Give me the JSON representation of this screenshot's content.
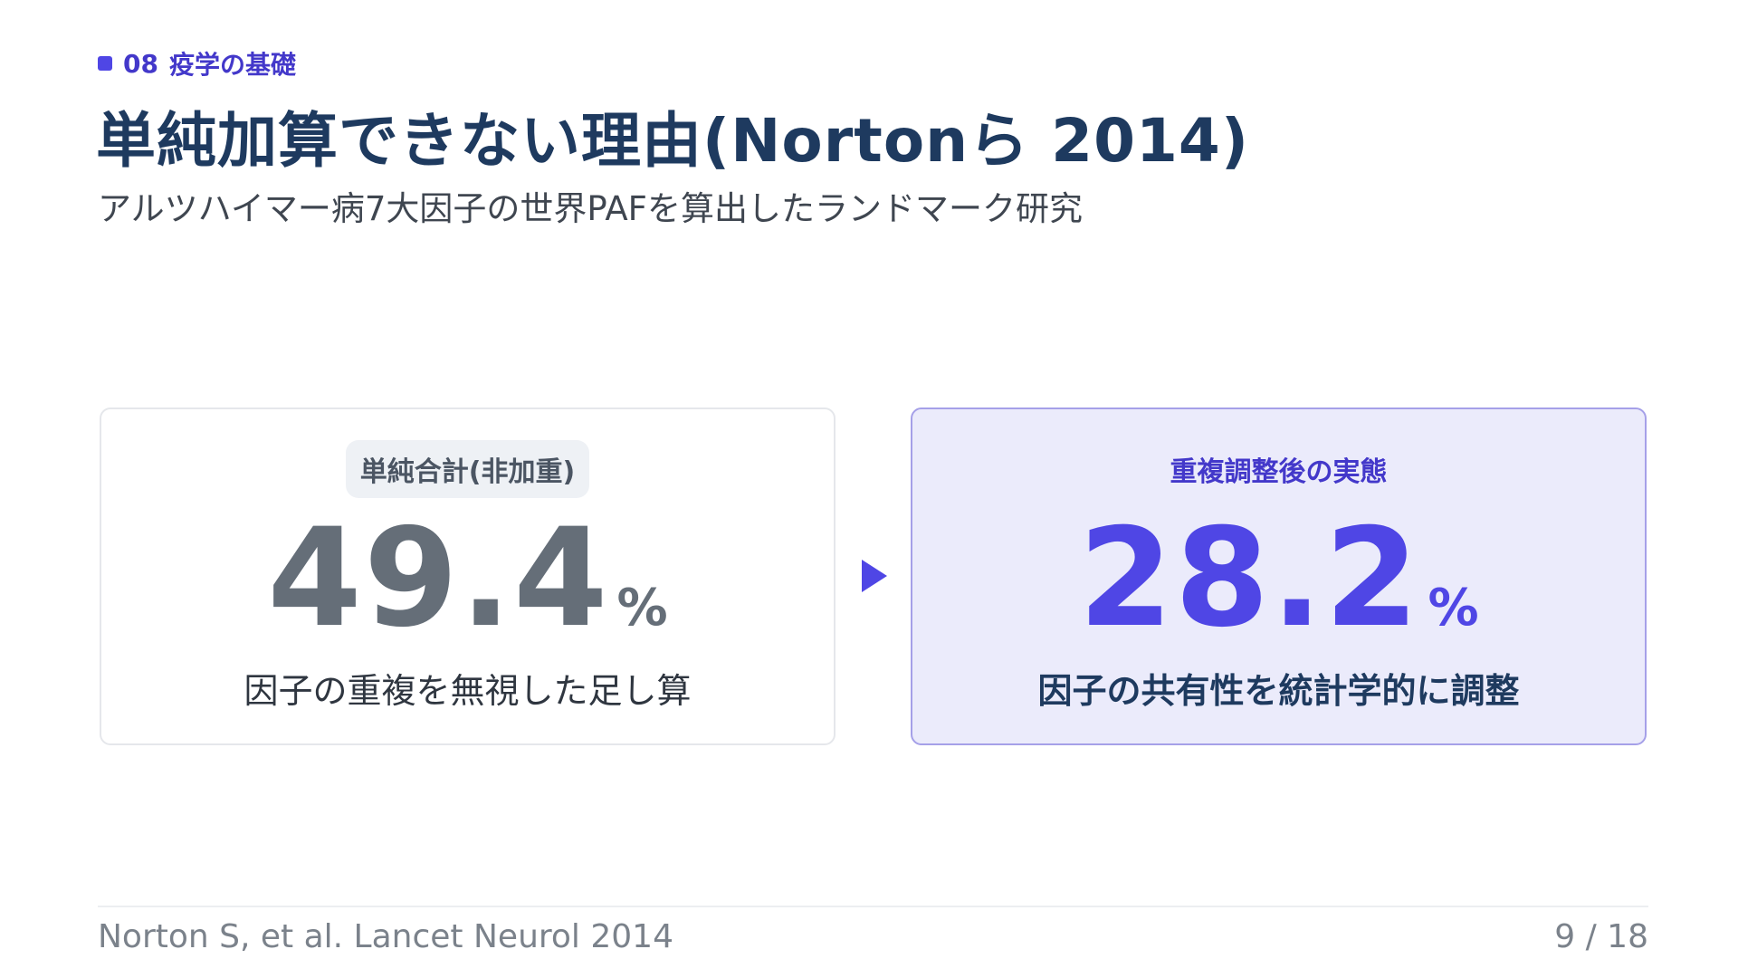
{
  "header": {
    "section_number": "08",
    "section_label": "疫学の基礎",
    "title": "単純加算できない理由(Nortonら 2014)",
    "subtitle": "アルツハイマー病7大因子の世界PAFを算出したランドマーク研究"
  },
  "cards": [
    {
      "label": "単純合計(非加重)",
      "value": "49.4",
      "unit": "%",
      "description": "因子の重複を無視した足し算"
    },
    {
      "label": "重複調整後の実態",
      "value": "28.2",
      "unit": "%",
      "description": "因子の共有性を統計学的に調整"
    }
  ],
  "footer": {
    "citation": "Norton S, et al. Lancet Neurol 2014",
    "page": "9 / 18"
  }
}
